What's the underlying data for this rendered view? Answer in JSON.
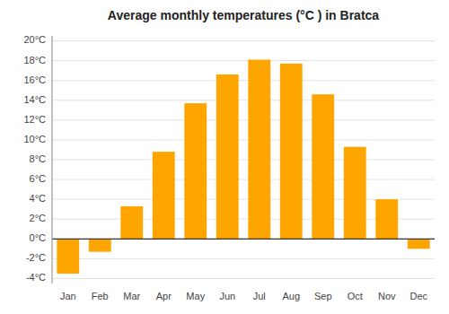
{
  "chart_data": {
    "type": "bar",
    "title": "Average monthly temperatures (°C ) in Bratca",
    "categories": [
      "Jan",
      "Feb",
      "Mar",
      "Apr",
      "May",
      "Jun",
      "Jul",
      "Aug",
      "Sep",
      "Oct",
      "Nov",
      "Dec"
    ],
    "values": [
      -3.5,
      -1.3,
      3.3,
      8.8,
      13.7,
      16.6,
      18.1,
      17.7,
      14.6,
      9.3,
      4.0,
      -1.0
    ],
    "color": "#FFA500",
    "ylim": [
      -4.5,
      20.5
    ],
    "yticks": [
      {
        "value": -4,
        "label": "-4°C"
      },
      {
        "value": -2,
        "label": "-2°C"
      },
      {
        "value": 0,
        "label": "0°C"
      },
      {
        "value": 2,
        "label": "2°C"
      },
      {
        "value": 4,
        "label": "4°C"
      },
      {
        "value": 6,
        "label": "6°C"
      },
      {
        "value": 8,
        "label": "8°C"
      },
      {
        "value": 10,
        "label": "10°C"
      },
      {
        "value": 12,
        "label": "12°C"
      },
      {
        "value": 14,
        "label": "14°C"
      },
      {
        "value": 16,
        "label": "16°C"
      },
      {
        "value": 18,
        "label": "18°C"
      },
      {
        "value": 20,
        "label": "20°C"
      }
    ],
    "grid": true
  }
}
